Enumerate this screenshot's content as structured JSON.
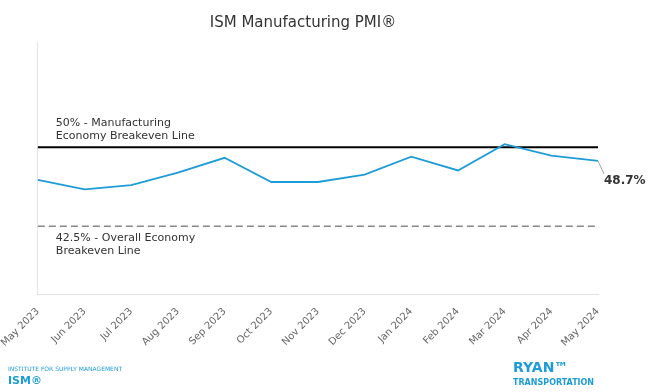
{
  "chart_data": {
    "type": "line",
    "title": "ISM Manufacturing PMI®",
    "categories": [
      "May 2023",
      "Jun 2023",
      "Jul 2023",
      "Aug 2023",
      "Sep 2023",
      "Oct 2023",
      "Nov 2023",
      "Dec 2023",
      "Jan 2024",
      "Feb 2024",
      "Mar 2024",
      "Apr 2024",
      "May 2024"
    ],
    "values": [
      46.9,
      46.0,
      46.4,
      47.6,
      49.0,
      46.7,
      46.7,
      47.4,
      49.1,
      47.8,
      50.3,
      49.2,
      48.7
    ],
    "color": "#1E9CD7",
    "ylim": [
      36,
      60
    ],
    "grid": false,
    "tick_labels": "x",
    "annotations": [
      {
        "text": "50% - Manufacturing\nEconomy Breakeven Line",
        "y": 50.0,
        "line_style": "solid",
        "color": "#000000"
      },
      {
        "text": "42.5% - Overall Economy\nBreakeven Line",
        "y": 42.5,
        "line_style": "dashed",
        "color": "#888888"
      },
      {
        "text": "48.7%",
        "x": "May 2024",
        "y": 48.7
      }
    ],
    "footer": {
      "left": [
        "INSTITUTE FOR SUPPLY MANAGEMENT",
        "ISM®"
      ],
      "right": [
        "RYAN™",
        "TRANSPORTATION"
      ],
      "color": "#1E9CD7"
    }
  }
}
